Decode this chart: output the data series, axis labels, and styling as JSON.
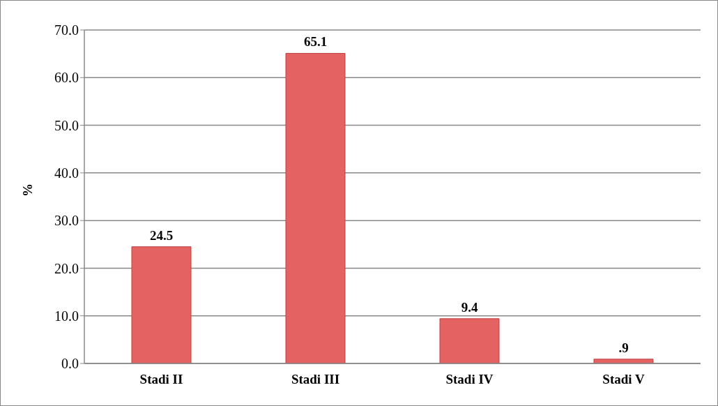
{
  "chart_data": {
    "type": "bar",
    "ylabel": "%",
    "categories": [
      "Stadi II",
      "Stadi III",
      "Stadi IV",
      "Stadi V"
    ],
    "values": [
      24.5,
      65.1,
      9.4,
      0.9
    ],
    "value_labels": [
      "24.5",
      "65.1",
      "9.4",
      ".9"
    ],
    "color": "#e46262",
    "ylim": [
      0,
      70
    ],
    "yticks": [
      {
        "value": 0,
        "label": "0.0"
      },
      {
        "value": 10,
        "label": "10.0"
      },
      {
        "value": 20,
        "label": "20.0"
      },
      {
        "value": 30,
        "label": "30.0"
      },
      {
        "value": 40,
        "label": "40.0"
      },
      {
        "value": 50,
        "label": "50.0"
      },
      {
        "value": 60,
        "label": "60.0"
      },
      {
        "value": 70,
        "label": "70.0"
      }
    ],
    "grid": "y"
  }
}
